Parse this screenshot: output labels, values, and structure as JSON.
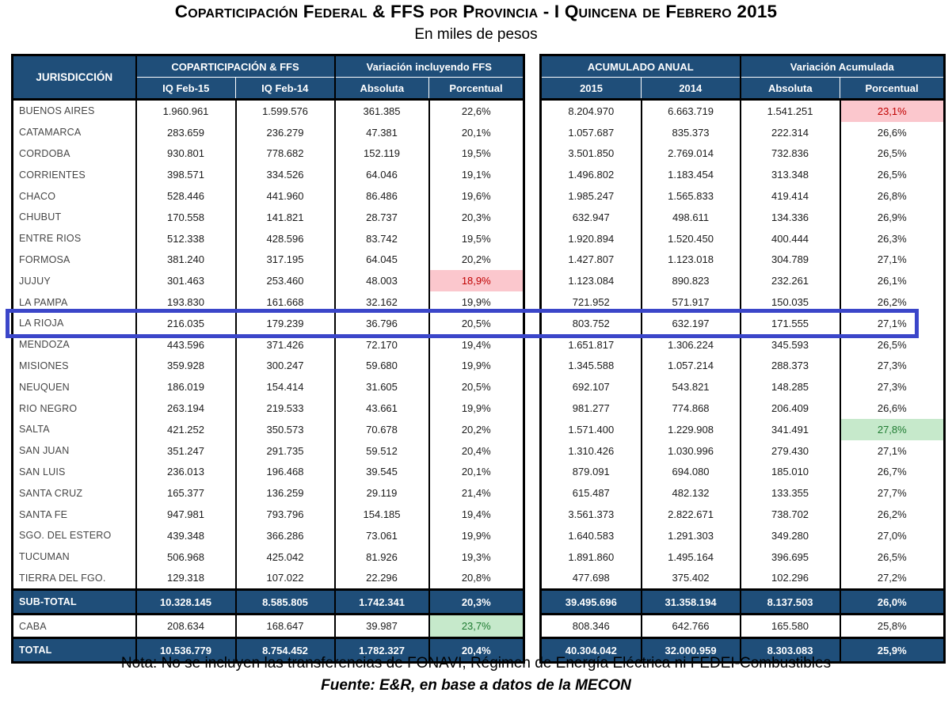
{
  "title": "Coparticipación Federal & FFS por Provincia - I Quincena de Febrero 2015",
  "subtitle": "En miles de pesos",
  "table": {
    "jurisdiction_header": "JURISDICCIÓN",
    "left": {
      "group1": "COPARTICIPACIÓN & FFS",
      "group2": "Variación incluyendo FFS",
      "cols": [
        "IQ Feb-15",
        "IQ Feb-14",
        "Absoluta",
        "Porcentual"
      ]
    },
    "right": {
      "group1": "ACUMULADO ANUAL",
      "group2": "Variación Acumulada",
      "cols": [
        "2015",
        "2014",
        "Absoluta",
        "Porcentual"
      ]
    },
    "rows": [
      {
        "name": "BUENOS AIRES",
        "left": [
          "1.960.961",
          "1.599.576",
          "361.385",
          "22,6%"
        ],
        "right": [
          "8.204.970",
          "6.663.719",
          "1.541.251",
          "23,1%"
        ],
        "right_hl": {
          "index": 3,
          "kind": "bad"
        }
      },
      {
        "name": "CATAMARCA",
        "left": [
          "283.659",
          "236.279",
          "47.381",
          "20,1%"
        ],
        "right": [
          "1.057.687",
          "835.373",
          "222.314",
          "26,6%"
        ]
      },
      {
        "name": "CORDOBA",
        "left": [
          "930.801",
          "778.682",
          "152.119",
          "19,5%"
        ],
        "right": [
          "3.501.850",
          "2.769.014",
          "732.836",
          "26,5%"
        ]
      },
      {
        "name": "CORRIENTES",
        "left": [
          "398.571",
          "334.526",
          "64.046",
          "19,1%"
        ],
        "right": [
          "1.496.802",
          "1.183.454",
          "313.348",
          "26,5%"
        ]
      },
      {
        "name": "CHACO",
        "left": [
          "528.446",
          "441.960",
          "86.486",
          "19,6%"
        ],
        "right": [
          "1.985.247",
          "1.565.833",
          "419.414",
          "26,8%"
        ]
      },
      {
        "name": "CHUBUT",
        "left": [
          "170.558",
          "141.821",
          "28.737",
          "20,3%"
        ],
        "right": [
          "632.947",
          "498.611",
          "134.336",
          "26,9%"
        ]
      },
      {
        "name": "ENTRE RIOS",
        "left": [
          "512.338",
          "428.596",
          "83.742",
          "19,5%"
        ],
        "right": [
          "1.920.894",
          "1.520.450",
          "400.444",
          "26,3%"
        ]
      },
      {
        "name": "FORMOSA",
        "left": [
          "381.240",
          "317.195",
          "64.045",
          "20,2%"
        ],
        "right": [
          "1.427.807",
          "1.123.018",
          "304.789",
          "27,1%"
        ]
      },
      {
        "name": "JUJUY",
        "left": [
          "301.463",
          "253.460",
          "48.003",
          "18,9%"
        ],
        "right": [
          "1.123.084",
          "890.823",
          "232.261",
          "26,1%"
        ],
        "left_hl": {
          "index": 3,
          "kind": "bad"
        }
      },
      {
        "name": "LA PAMPA",
        "left": [
          "193.830",
          "161.668",
          "32.162",
          "19,9%"
        ],
        "right": [
          "721.952",
          "571.917",
          "150.035",
          "26,2%"
        ]
      },
      {
        "name": "LA RIOJA",
        "left": [
          "216.035",
          "179.239",
          "36.796",
          "20,5%"
        ],
        "right": [
          "803.752",
          "632.197",
          "171.555",
          "27,1%"
        ],
        "boxed": true
      },
      {
        "name": "MENDOZA",
        "left": [
          "443.596",
          "371.426",
          "72.170",
          "19,4%"
        ],
        "right": [
          "1.651.817",
          "1.306.224",
          "345.593",
          "26,5%"
        ]
      },
      {
        "name": "MISIONES",
        "left": [
          "359.928",
          "300.247",
          "59.680",
          "19,9%"
        ],
        "right": [
          "1.345.588",
          "1.057.214",
          "288.373",
          "27,3%"
        ]
      },
      {
        "name": "NEUQUEN",
        "left": [
          "186.019",
          "154.414",
          "31.605",
          "20,5%"
        ],
        "right": [
          "692.107",
          "543.821",
          "148.285",
          "27,3%"
        ]
      },
      {
        "name": "RIO NEGRO",
        "left": [
          "263.194",
          "219.533",
          "43.661",
          "19,9%"
        ],
        "right": [
          "981.277",
          "774.868",
          "206.409",
          "26,6%"
        ]
      },
      {
        "name": "SALTA",
        "left": [
          "421.252",
          "350.573",
          "70.678",
          "20,2%"
        ],
        "right": [
          "1.571.400",
          "1.229.908",
          "341.491",
          "27,8%"
        ],
        "right_hl": {
          "index": 3,
          "kind": "good"
        }
      },
      {
        "name": "SAN JUAN",
        "left": [
          "351.247",
          "291.735",
          "59.512",
          "20,4%"
        ],
        "right": [
          "1.310.426",
          "1.030.996",
          "279.430",
          "27,1%"
        ]
      },
      {
        "name": "SAN LUIS",
        "left": [
          "236.013",
          "196.468",
          "39.545",
          "20,1%"
        ],
        "right": [
          "879.091",
          "694.080",
          "185.010",
          "26,7%"
        ]
      },
      {
        "name": "SANTA CRUZ",
        "left": [
          "165.377",
          "136.259",
          "29.119",
          "21,4%"
        ],
        "right": [
          "615.487",
          "482.132",
          "133.355",
          "27,7%"
        ]
      },
      {
        "name": "SANTA FE",
        "left": [
          "947.981",
          "793.796",
          "154.185",
          "19,4%"
        ],
        "right": [
          "3.561.373",
          "2.822.671",
          "738.702",
          "26,2%"
        ]
      },
      {
        "name": "SGO. DEL ESTERO",
        "left": [
          "439.348",
          "366.286",
          "73.061",
          "19,9%"
        ],
        "right": [
          "1.640.583",
          "1.291.303",
          "349.280",
          "27,0%"
        ]
      },
      {
        "name": "TUCUMAN",
        "left": [
          "506.968",
          "425.042",
          "81.926",
          "19,3%"
        ],
        "right": [
          "1.891.860",
          "1.495.164",
          "396.695",
          "26,5%"
        ]
      },
      {
        "name": "TIERRA DEL FGO.",
        "left": [
          "129.318",
          "107.022",
          "22.296",
          "20,8%"
        ],
        "right": [
          "477.698",
          "375.402",
          "102.296",
          "27,2%"
        ]
      },
      {
        "name": "SUB-TOTAL",
        "style": "dark",
        "left": [
          "10.328.145",
          "8.585.805",
          "1.742.341",
          "20,3%"
        ],
        "right": [
          "39.495.696",
          "31.358.194",
          "8.137.503",
          "26,0%"
        ]
      },
      {
        "name": "CABA",
        "style": "caba",
        "left": [
          "208.634",
          "168.647",
          "39.987",
          "23,7%"
        ],
        "right": [
          "808.346",
          "642.766",
          "165.580",
          "25,8%"
        ],
        "left_hl": {
          "index": 3,
          "kind": "good"
        }
      },
      {
        "name": "TOTAL",
        "style": "dark",
        "left": [
          "10.536.779",
          "8.754.452",
          "1.782.327",
          "20,4%"
        ],
        "right": [
          "40.304.042",
          "32.000.959",
          "8.303.083",
          "25,9%"
        ]
      }
    ]
  },
  "notes": {
    "nota": "Nota: No se incluyen las transferencias de FONAVI, Régimen de Energía Eléctrica ni FEDEI-Combustibles",
    "fuente": "Fuente: E&R, en base a datos de la MECON"
  },
  "colors": {
    "header_blue": "#1F4E79",
    "highlight_bad_bg": "#FBC7CD",
    "highlight_bad_text": "#C00000",
    "highlight_good_bg": "#C6E9CB",
    "highlight_good_text": "#1E7B31",
    "row_box_blue": "#3B46C9"
  }
}
